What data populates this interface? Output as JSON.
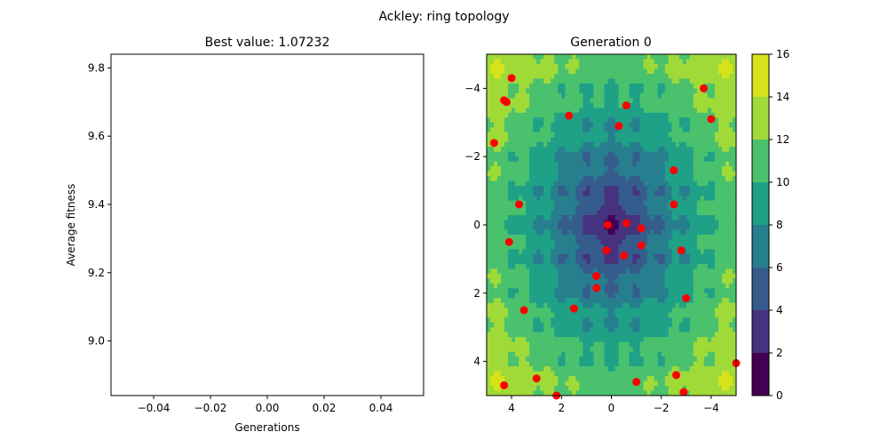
{
  "figure": {
    "suptitle": "Ackley: ring topology"
  },
  "chart_data": [
    {
      "type": "line",
      "title": "Best value: 1.07232",
      "xlabel": "Generations",
      "ylabel": "Average fitness",
      "xlim": [
        -0.055,
        0.055
      ],
      "ylim": [
        8.84,
        9.84
      ],
      "x_ticks": [
        -0.04,
        -0.02,
        0.0,
        0.02,
        0.04
      ],
      "x_tick_labels": [
        "−0.04",
        "−0.02",
        "0.00",
        "0.02",
        "0.04"
      ],
      "y_ticks": [
        9.0,
        9.2,
        9.4,
        9.6,
        9.8
      ],
      "y_tick_labels": [
        "9.0",
        "9.2",
        "9.4",
        "9.6",
        "9.8"
      ],
      "series": [],
      "grid": false
    },
    {
      "type": "scatter",
      "subtype": "contour with scatter overlay",
      "title": "Generation 0",
      "xlabel": "",
      "ylabel": "",
      "xlim": [
        5,
        -5
      ],
      "ylim": [
        5,
        -5
      ],
      "x_ticks": [
        4,
        2,
        0,
        -2,
        -4
      ],
      "x_tick_labels": [
        "4",
        "2",
        "0",
        "−2",
        "−4"
      ],
      "y_ticks": [
        -4,
        -2,
        0,
        2,
        4
      ],
      "y_tick_labels": [
        "−4",
        "−2",
        "0",
        "2",
        "4"
      ],
      "contour": {
        "function": "ackley",
        "levels": [
          0,
          2,
          4,
          6,
          8,
          10,
          12,
          14,
          16
        ],
        "colors": [
          "#440154",
          "#46327e",
          "#365c8d",
          "#277f8e",
          "#1fa187",
          "#4ac16d",
          "#a0da39",
          "#d6e21a"
        ],
        "colorbar_ticks": [
          "0",
          "2",
          "4",
          "6",
          "8",
          "10",
          "12",
          "14",
          "16"
        ]
      },
      "particles": {
        "color": "#ff0000",
        "points": [
          [
            4.3,
            4.7
          ],
          [
            3.0,
            4.5
          ],
          [
            2.2,
            5.0
          ],
          [
            -1.0,
            4.6
          ],
          [
            -2.9,
            4.9
          ],
          [
            -2.6,
            4.4
          ],
          [
            -5.0,
            4.05
          ],
          [
            3.5,
            2.5
          ],
          [
            1.5,
            2.45
          ],
          [
            0.6,
            1.85
          ],
          [
            0.6,
            1.5
          ],
          [
            -3.0,
            2.15
          ],
          [
            0.2,
            0.75
          ],
          [
            -0.5,
            0.9
          ],
          [
            -2.8,
            0.75
          ],
          [
            -1.2,
            0.6
          ],
          [
            4.1,
            0.5
          ],
          [
            0.15,
            0.0
          ],
          [
            -0.6,
            -0.05
          ],
          [
            -1.2,
            0.1
          ],
          [
            3.7,
            -0.6
          ],
          [
            -2.5,
            -0.6
          ],
          [
            -2.5,
            -1.6
          ],
          [
            4.7,
            -2.4
          ],
          [
            1.7,
            -3.2
          ],
          [
            -0.3,
            -2.9
          ],
          [
            -4.0,
            -3.1
          ],
          [
            4.2,
            -3.6
          ],
          [
            4.3,
            -3.65
          ],
          [
            -0.6,
            -3.5
          ],
          [
            4.0,
            -4.3
          ],
          [
            -3.7,
            -4.0
          ]
        ]
      }
    }
  ]
}
